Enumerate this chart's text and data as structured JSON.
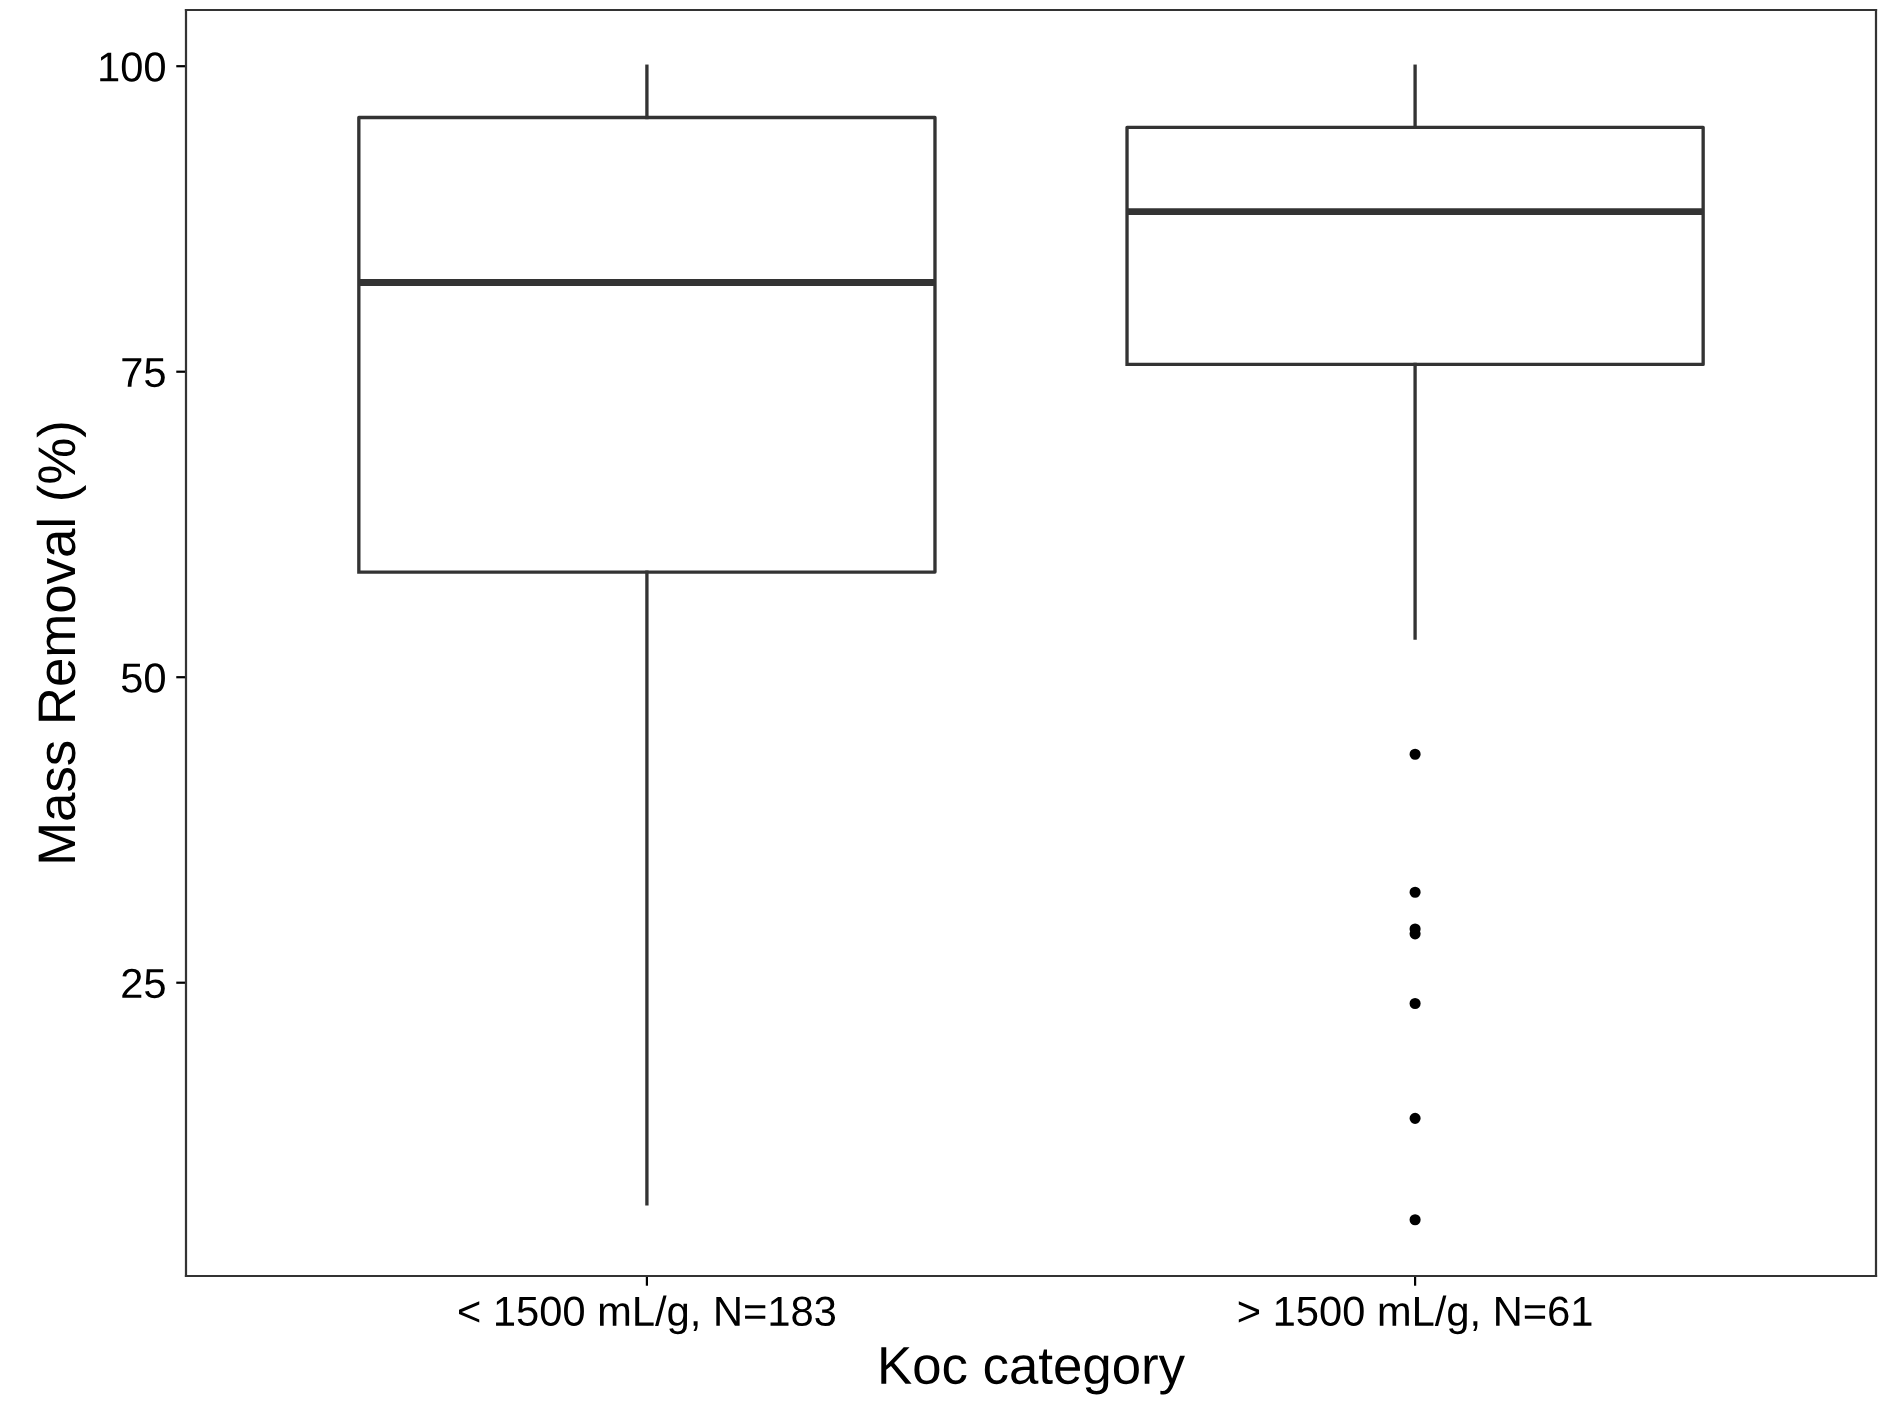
{
  "chart_data": {
    "type": "box",
    "xlabel": "Koc category",
    "ylabel": "Mass Removal (%)",
    "categories": [
      "< 1500 mL/g, N=183",
      "> 1500 mL/g, N=61"
    ],
    "boxes": [
      {
        "low": 6.9,
        "q1": 58.6,
        "median": 82.3,
        "q3": 95.8,
        "high": 100
      },
      {
        "low": 53.2,
        "q1": 75.6,
        "median": 88.1,
        "q3": 95.0,
        "high": 100,
        "outliers": [
          43.7,
          32.4,
          29.4,
          29.0,
          23.3,
          13.9,
          5.6
        ]
      }
    ],
    "color": "#333333",
    "ylim": [
      1.0,
      104.6
    ],
    "yticks": [
      25,
      50,
      75,
      100
    ],
    "grid": false
  }
}
